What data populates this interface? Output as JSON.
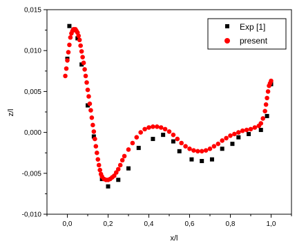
{
  "chart_data": {
    "type": "scatter",
    "xlabel": "x/l",
    "ylabel": "z/l",
    "xlim": [
      -0.1,
      1.1
    ],
    "ylim": [
      -0.01,
      0.015
    ],
    "x_ticks": [
      0.0,
      0.2,
      0.4,
      0.6,
      0.8,
      1.0
    ],
    "x_tick_labels": [
      "0,0",
      "0,2",
      "0,4",
      "0,6",
      "0,8",
      "1,0"
    ],
    "y_ticks": [
      -0.01,
      -0.005,
      0.0,
      0.005,
      0.01,
      0.015
    ],
    "y_tick_labels": [
      "-0,010",
      "-0,005",
      "0,000",
      "0,005",
      "0,010",
      "0,015"
    ],
    "grid": false,
    "legend_position": "top-right",
    "series": [
      {
        "name": "Exp [1]",
        "marker": "square",
        "color": "#000000",
        "points": [
          [
            0.0,
            0.009
          ],
          [
            0.01,
            0.013
          ],
          [
            0.03,
            0.0125
          ],
          [
            0.05,
            0.0115
          ],
          [
            0.07,
            0.0083
          ],
          [
            0.1,
            0.0033
          ],
          [
            0.13,
            -0.0005
          ],
          [
            0.17,
            -0.0057
          ],
          [
            0.2,
            -0.0066
          ],
          [
            0.25,
            -0.0058
          ],
          [
            0.3,
            -0.0044
          ],
          [
            0.35,
            -0.0019
          ],
          [
            0.42,
            -0.0008
          ],
          [
            0.47,
            -0.0003
          ],
          [
            0.52,
            -0.0011
          ],
          [
            0.55,
            -0.0023
          ],
          [
            0.61,
            -0.0033
          ],
          [
            0.66,
            -0.0035
          ],
          [
            0.71,
            -0.0033
          ],
          [
            0.76,
            -0.002
          ],
          [
            0.81,
            -0.0014
          ],
          [
            0.84,
            -0.0006
          ],
          [
            0.89,
            -0.0002
          ],
          [
            0.95,
            0.0003
          ],
          [
            0.98,
            0.002
          ],
          [
            1.0,
            0.0059
          ]
        ]
      },
      {
        "name": "present",
        "marker": "circle",
        "color": "#ff0000",
        "points": [
          [
            -0.01,
            0.0069
          ],
          [
            -0.005,
            0.0078
          ],
          [
            0.0,
            0.0088
          ],
          [
            0.005,
            0.0098
          ],
          [
            0.01,
            0.0107
          ],
          [
            0.015,
            0.0116
          ],
          [
            0.02,
            0.0121
          ],
          [
            0.025,
            0.0124
          ],
          [
            0.03,
            0.0126
          ],
          [
            0.035,
            0.0126
          ],
          [
            0.04,
            0.0126
          ],
          [
            0.045,
            0.0124
          ],
          [
            0.05,
            0.0122
          ],
          [
            0.055,
            0.0118
          ],
          [
            0.06,
            0.0113
          ],
          [
            0.065,
            0.0106
          ],
          [
            0.07,
            0.0099
          ],
          [
            0.075,
            0.0092
          ],
          [
            0.08,
            0.0085
          ],
          [
            0.085,
            0.0077
          ],
          [
            0.09,
            0.0069
          ],
          [
            0.095,
            0.0061
          ],
          [
            0.1,
            0.0052
          ],
          [
            0.105,
            0.0044
          ],
          [
            0.11,
            0.0035
          ],
          [
            0.115,
            0.0027
          ],
          [
            0.12,
            0.0018
          ],
          [
            0.125,
            0.0009
          ],
          [
            0.13,
            0.0001
          ],
          [
            0.135,
            -0.0008
          ],
          [
            0.14,
            -0.0017
          ],
          [
            0.145,
            -0.0025
          ],
          [
            0.15,
            -0.0033
          ],
          [
            0.155,
            -0.004
          ],
          [
            0.16,
            -0.0046
          ],
          [
            0.165,
            -0.0051
          ],
          [
            0.17,
            -0.0054
          ],
          [
            0.18,
            -0.0057
          ],
          [
            0.19,
            -0.0058
          ],
          [
            0.2,
            -0.0058
          ],
          [
            0.21,
            -0.0057
          ],
          [
            0.22,
            -0.0055
          ],
          [
            0.23,
            -0.0053
          ],
          [
            0.24,
            -0.0049
          ],
          [
            0.25,
            -0.0045
          ],
          [
            0.26,
            -0.004
          ],
          [
            0.27,
            -0.0034
          ],
          [
            0.28,
            -0.0029
          ],
          [
            0.3,
            -0.0021
          ],
          [
            0.32,
            -0.0013
          ],
          [
            0.34,
            -0.0006
          ],
          [
            0.36,
            0.0
          ],
          [
            0.38,
            0.0004
          ],
          [
            0.4,
            0.0006
          ],
          [
            0.42,
            0.0007
          ],
          [
            0.44,
            0.0007
          ],
          [
            0.46,
            0.0006
          ],
          [
            0.48,
            0.0004
          ],
          [
            0.5,
            0.0001
          ],
          [
            0.52,
            -0.0003
          ],
          [
            0.54,
            -0.0008
          ],
          [
            0.56,
            -0.0013
          ],
          [
            0.58,
            -0.0017
          ],
          [
            0.6,
            -0.002
          ],
          [
            0.62,
            -0.0022
          ],
          [
            0.64,
            -0.0023
          ],
          [
            0.66,
            -0.0023
          ],
          [
            0.68,
            -0.0022
          ],
          [
            0.7,
            -0.002
          ],
          [
            0.72,
            -0.0017
          ],
          [
            0.74,
            -0.0014
          ],
          [
            0.76,
            -0.001
          ],
          [
            0.78,
            -0.0007
          ],
          [
            0.8,
            -0.0004
          ],
          [
            0.82,
            -0.0002
          ],
          [
            0.84,
            0.0
          ],
          [
            0.86,
            0.0002
          ],
          [
            0.88,
            0.0003
          ],
          [
            0.9,
            0.0004
          ],
          [
            0.92,
            0.0006
          ],
          [
            0.94,
            0.0008
          ],
          [
            0.95,
            0.0011
          ],
          [
            0.96,
            0.0017
          ],
          [
            0.97,
            0.0026
          ],
          [
            0.975,
            0.0034
          ],
          [
            0.98,
            0.0042
          ],
          [
            0.985,
            0.005
          ],
          [
            0.99,
            0.0057
          ],
          [
            0.995,
            0.006
          ],
          [
            1.0,
            0.0063
          ]
        ]
      }
    ]
  }
}
